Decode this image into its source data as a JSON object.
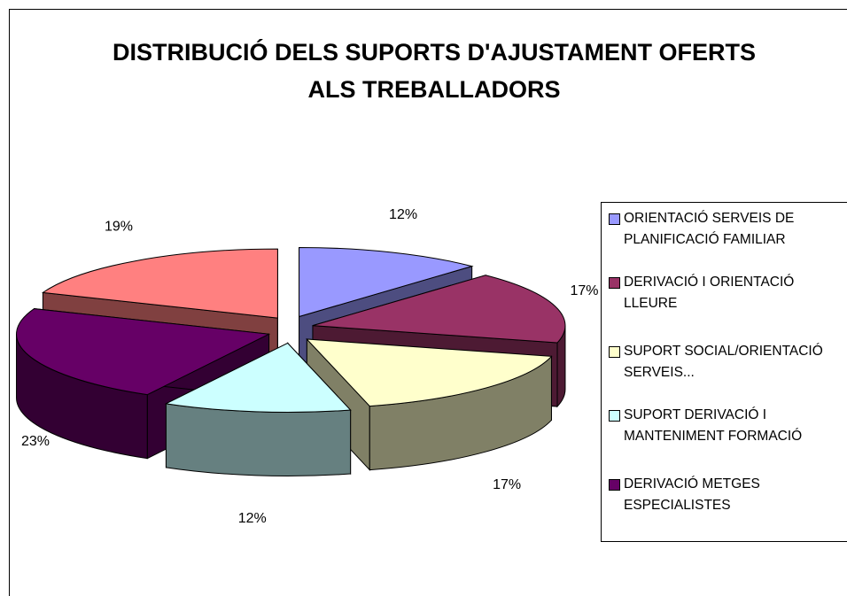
{
  "chart_data": {
    "type": "pie3d",
    "title": "DISTRIBUCIÓ DELS SUPORTS D'AJUSTAMENT OFERTS ALS TREBALLADORS",
    "categories": [
      "ORIENTACIÓ SERVEIS DE PLANIFICACIÓ FAMILIAR",
      "DERIVACIÓ I ORIENTACIÓ LLEURE",
      "SUPORT SOCIAL/ORIENTACIÓ SERVEIS...",
      "SUPORT DERIVACIÓ I MANTENIMENT FORMACIÓ",
      "DERIVACIÓ METGES ESPECIALISTES",
      null
    ],
    "values": [
      12,
      17,
      17,
      12,
      23,
      19
    ],
    "value_labels": [
      "12%",
      "17%",
      "17%",
      "12%",
      "23%",
      "19%"
    ],
    "colors": [
      "#9999ff",
      "#993366",
      "#ffffcc",
      "#ccffff",
      "#660066",
      "#ff8080"
    ],
    "legend": "right"
  }
}
